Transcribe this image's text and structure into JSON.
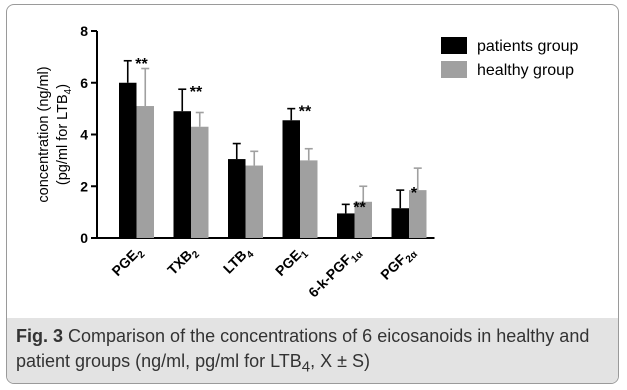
{
  "chart_data": {
    "type": "bar",
    "title": "",
    "ylabel_lines": [
      {
        "text": "concentration (ng/ml)"
      },
      {
        "text": "(pg/ml for LTB",
        "sub": "4",
        "after": ")"
      }
    ],
    "ylim": [
      0,
      8
    ],
    "yticks": [
      "0",
      "2",
      "4",
      "6",
      "8"
    ],
    "categories": [
      {
        "main": "PGE",
        "sub": "2"
      },
      {
        "main": "TXB",
        "sub": "2"
      },
      {
        "main": "LTB",
        "sub": "4"
      },
      {
        "main": "PGE",
        "sub": "1"
      },
      {
        "main": "6-k-PGF",
        "sub": "1α"
      },
      {
        "main": "PGF",
        "sub": "2α"
      }
    ],
    "series": [
      {
        "name": "patients group",
        "color": "#000000",
        "values": [
          6.0,
          4.9,
          3.05,
          4.55,
          0.95,
          1.15
        ],
        "errors": [
          0.85,
          0.85,
          0.6,
          0.45,
          0.35,
          0.7
        ]
      },
      {
        "name": "healthy group",
        "color": "#a0a0a0",
        "values": [
          5.1,
          4.3,
          2.8,
          3.0,
          1.4,
          1.85
        ],
        "errors": [
          1.45,
          0.55,
          0.55,
          0.45,
          0.6,
          0.85
        ]
      }
    ],
    "annotations": [
      "**",
      "**",
      "",
      "**",
      "**",
      "*"
    ],
    "legend_position": "top-right",
    "grid": false
  },
  "caption": {
    "label": "Fig. 3",
    "text_before": " Comparison of the concentrations of 6 eicosanoids in healthy and patient groups (ng/ml, pg/ml for LTB",
    "sub": "4",
    "text_after": ", X ± S)"
  }
}
